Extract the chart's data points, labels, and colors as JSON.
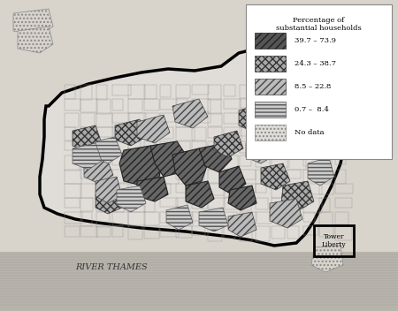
{
  "title": "",
  "background_color": "#d8d4cc",
  "legend_title": "Percentage of\nsubstantial households",
  "legend_items": [
    {
      "label": "39.7 – 73.9",
      "hatch": "///",
      "facecolor": "#555555",
      "edgecolor": "#222222"
    },
    {
      "label": "24.3 – 38.7",
      "hatch": "...",
      "facecolor": "#aaaaaa",
      "edgecolor": "#333333"
    },
    {
      "label": "8.5 – 22.8",
      "hatch": "////",
      "facecolor": "#cccccc",
      "edgecolor": "#444444"
    },
    {
      "label": "0.7 –  8.4",
      "hatch": "---",
      "facecolor": "#dddddd",
      "edgecolor": "#555555"
    },
    {
      "label": "No data",
      "hatch": "...",
      "facecolor": "#e8e8e0",
      "edgecolor": "#888888"
    }
  ],
  "river_thames_label": "RIVER THAMES",
  "tower_liberty_label": "Tower\nLiberty",
  "map_bg": "#c8c4bc",
  "figsize": [
    4.5,
    3.52
  ],
  "dpi": 100
}
